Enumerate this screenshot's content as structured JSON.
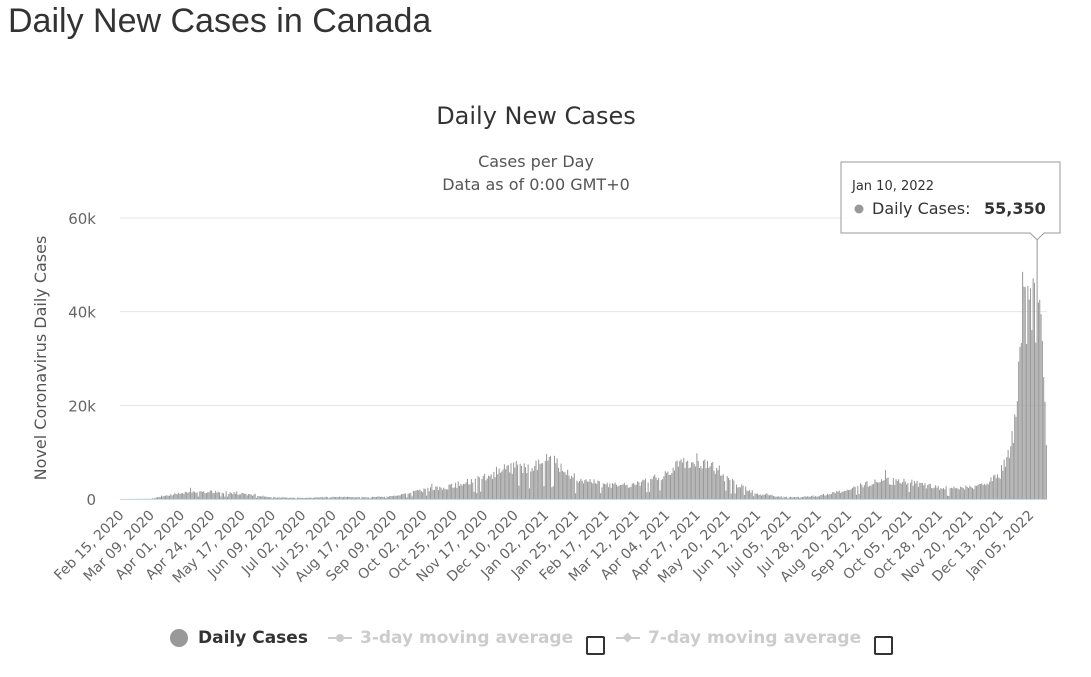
{
  "page": {
    "title": "Daily New Cases in Canada"
  },
  "chart_data": {
    "type": "bar",
    "title": "Daily New Cases",
    "subtitle_line1": "Cases per Day",
    "subtitle_line2": "Data as of 0:00 GMT+0",
    "ylabel": "Novel Coronavirus Daily Cases",
    "xlabel": "",
    "ylim": [
      0,
      60000
    ],
    "y_ticks": [
      "0",
      "20k",
      "40k",
      "60k"
    ],
    "y_tick_values": [
      0,
      20000,
      40000,
      60000
    ],
    "x_tick_labels": [
      "Feb 15, 2020",
      "Mar 09, 2020",
      "Apr 01, 2020",
      "Apr 24, 2020",
      "May 17, 2020",
      "Jun 09, 2020",
      "Jul 02, 2020",
      "Jul 25, 2020",
      "Aug 17, 2020",
      "Sep 09, 2020",
      "Oct 02, 2020",
      "Oct 25, 2020",
      "Nov 17, 2020",
      "Dec 10, 2020",
      "Jan 02, 2021",
      "Jan 25, 2021",
      "Feb 17, 2021",
      "Mar 12, 2021",
      "Apr 04, 2021",
      "Apr 27, 2021",
      "May 20, 2021",
      "Jun 12, 2021",
      "Jul 05, 2021",
      "Jul 28, 2021",
      "Aug 20, 2021",
      "Sep 12, 2021",
      "Oct 05, 2021",
      "Oct 28, 2021",
      "Nov 20, 2021",
      "Dec 13, 2021",
      "Jan 05, 2022"
    ],
    "grid": true,
    "series": [
      {
        "name": "Daily Cases",
        "color": "#999999",
        "x_start": "Feb 15, 2020",
        "x_end": "Jan 17, 2022",
        "interval": "day",
        "trend_anchors": [
          [
            "Feb 15, 2020",
            0
          ],
          [
            "Mar 09, 2020",
            60
          ],
          [
            "Mar 20, 2020",
            700
          ],
          [
            "Apr 01, 2020",
            1300
          ],
          [
            "Apr 24, 2020",
            1600
          ],
          [
            "May 01, 2020",
            1500
          ],
          [
            "May 17, 2020",
            1100
          ],
          [
            "Jun 09, 2020",
            350
          ],
          [
            "Jul 02, 2020",
            250
          ],
          [
            "Jul 25, 2020",
            450
          ],
          [
            "Aug 17, 2020",
            380
          ],
          [
            "Sep 09, 2020",
            600
          ],
          [
            "Oct 02, 2020",
            1900
          ],
          [
            "Oct 25, 2020",
            2800
          ],
          [
            "Nov 17, 2020",
            5000
          ],
          [
            "Dec 10, 2020",
            6800
          ],
          [
            "Dec 25, 2020",
            7100
          ],
          [
            "Jan 06, 2021",
            8300
          ],
          [
            "Jan 15, 2021",
            6500
          ],
          [
            "Jan 25, 2021",
            4500
          ],
          [
            "Feb 17, 2021",
            2900
          ],
          [
            "Mar 12, 2021",
            3000
          ],
          [
            "Apr 04, 2021",
            5500
          ],
          [
            "Apr 15, 2021",
            8500
          ],
          [
            "Apr 27, 2021",
            8300
          ],
          [
            "May 10, 2021",
            6800
          ],
          [
            "May 20, 2021",
            4200
          ],
          [
            "Jun 12, 2021",
            1000
          ],
          [
            "Jul 05, 2021",
            400
          ],
          [
            "Jul 28, 2021",
            600
          ],
          [
            "Aug 20, 2021",
            2000
          ],
          [
            "Sep 12, 2021",
            4000
          ],
          [
            "Oct 05, 2021",
            3600
          ],
          [
            "Oct 28, 2021",
            2300
          ],
          [
            "Nov 20, 2021",
            2400
          ],
          [
            "Dec 01, 2021",
            3000
          ],
          [
            "Dec 13, 2021",
            5500
          ],
          [
            "Dec 20, 2021",
            9500
          ],
          [
            "Dec 24, 2021",
            15000
          ],
          [
            "Dec 31, 2021",
            38000
          ],
          [
            "Jan 03, 2022",
            44000
          ],
          [
            "Jan 10, 2022",
            41000
          ],
          [
            "Jan 17, 2022",
            22000
          ]
        ],
        "point_overrides": [
          [
            "Dec 30, 2021",
            48500
          ],
          [
            "Jan 03, 2022",
            45500
          ],
          [
            "Jan 05, 2022",
            45000
          ],
          [
            "Jan 10, 2022",
            55350
          ],
          [
            "Jan 17, 2022",
            11500
          ]
        ]
      },
      {
        "name": "3-day moving average",
        "visible": false
      },
      {
        "name": "7-day moving average",
        "visible": false
      }
    ],
    "tooltip": {
      "date": "Jan 10, 2022",
      "series_label": "Daily Cases:",
      "value_text": "55,350"
    }
  },
  "legend": {
    "daily_cases": "Daily Cases",
    "ma3": "3-day moving average",
    "ma7": "7-day moving average"
  }
}
